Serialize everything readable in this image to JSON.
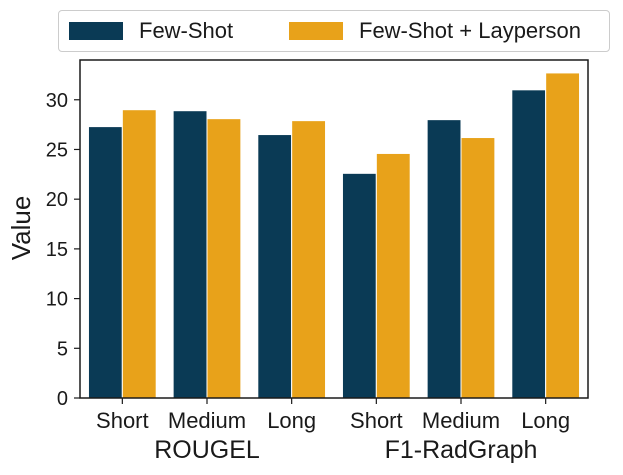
{
  "chart_data": {
    "type": "bar",
    "group_labels": [
      "ROUGEL",
      "F1-RadGraph"
    ],
    "categories": [
      "Short",
      "Medium",
      "Long",
      "Short",
      "Medium",
      "Long"
    ],
    "series": [
      {
        "name": "Few-Shot",
        "color": "#0a3a55",
        "values": [
          27.3,
          28.9,
          26.5,
          22.6,
          28.0,
          31.0
        ]
      },
      {
        "name": "Few-Shot + Layperson",
        "color": "#e8a21a",
        "values": [
          29.0,
          28.1,
          27.9,
          24.6,
          26.2,
          32.7
        ]
      }
    ],
    "ylabel": "Value",
    "xlabel": "",
    "ylim": [
      0,
      34
    ],
    "yticks": [
      0,
      5,
      10,
      15,
      20,
      25,
      30
    ],
    "grid": false,
    "legend_position": "top"
  }
}
